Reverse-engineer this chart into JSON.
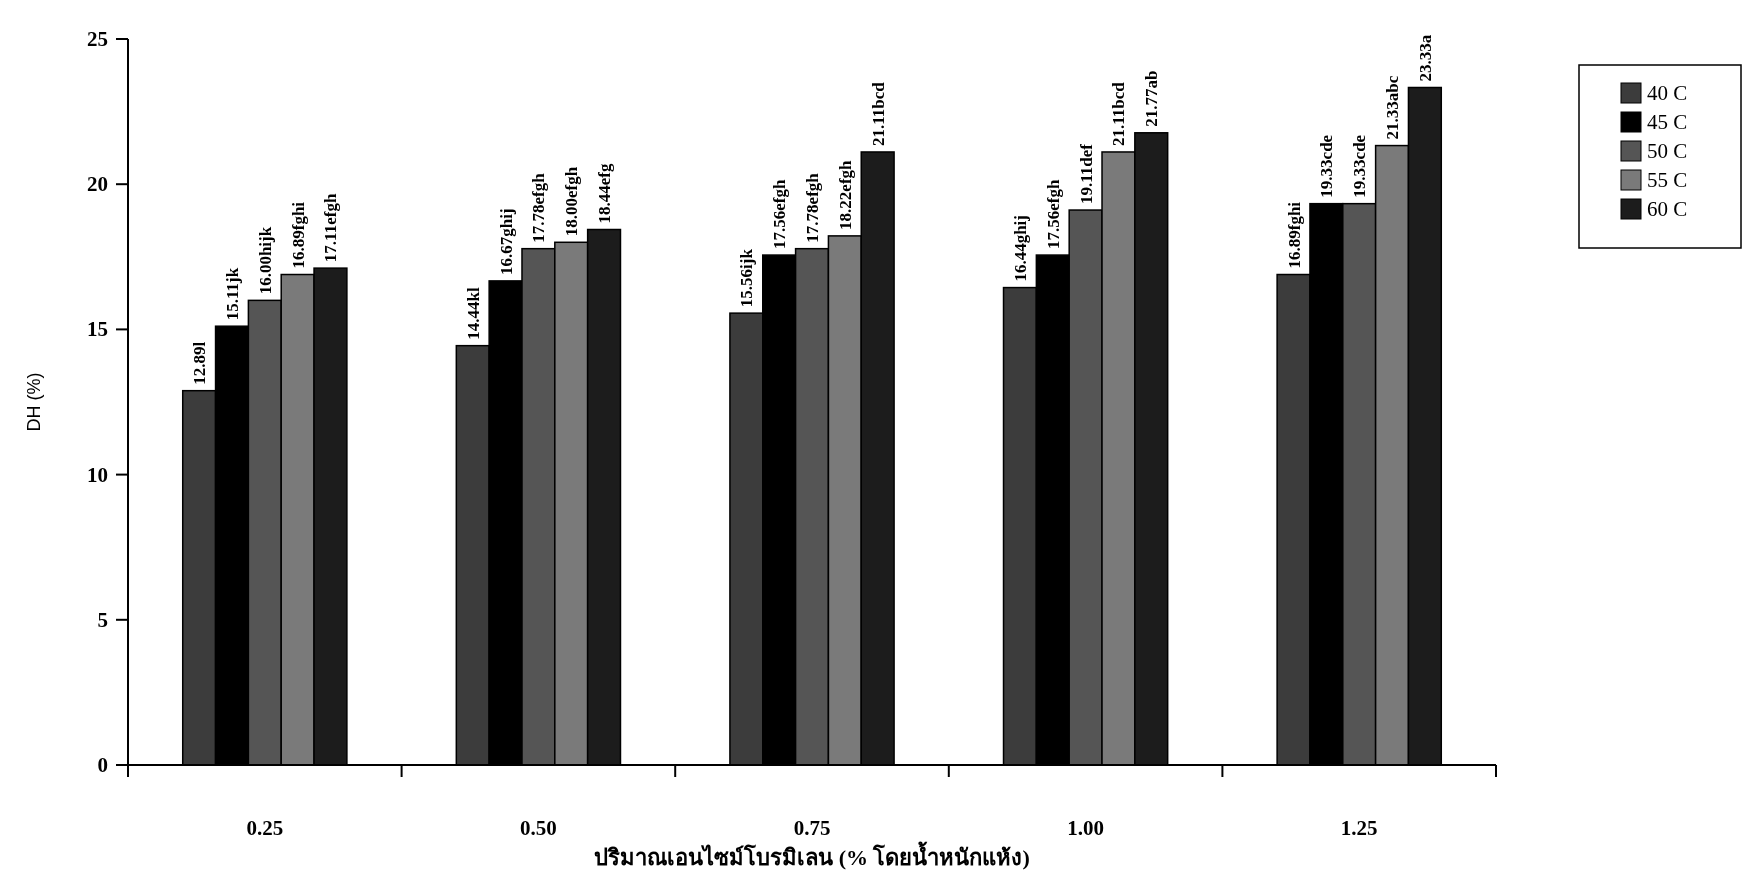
{
  "chart_data": {
    "type": "bar",
    "xlabel": "ปริมาณเอนไซม์โบรมิเลน (% โดยน้ำหนักแห้ง)",
    "ylabel": "DH (%)",
    "categories": [
      "0.25",
      "0.50",
      "0.75",
      "1.00",
      "1.25"
    ],
    "ylim": [
      0,
      25
    ],
    "yticks": [
      0,
      5,
      10,
      15,
      20,
      25
    ],
    "grid": false,
    "legend": "right",
    "series": [
      {
        "name": "40 C",
        "color": "#3c3c3c",
        "values": [
          12.89,
          14.44,
          15.56,
          16.44,
          16.89
        ],
        "value_labels": [
          "12.89l",
          "14.44kl",
          "15.56ijk",
          "16.44ghij",
          "16.89fghi"
        ]
      },
      {
        "name": "45 C",
        "color": "#000000",
        "values": [
          15.11,
          16.67,
          17.56,
          17.56,
          19.33
        ],
        "value_labels": [
          "15.11jk",
          "16.67ghij",
          "17.56efgh",
          "17.56efgh",
          "19.33cde"
        ]
      },
      {
        "name": "50 C",
        "color": "#555555",
        "values": [
          16.0,
          17.78,
          17.78,
          19.11,
          19.33
        ],
        "value_labels": [
          "16.00hijk",
          "17.78efgh",
          "17.78efgh",
          "19.11def",
          "19.33cde"
        ]
      },
      {
        "name": "55 C",
        "color": "#7a7a7a",
        "values": [
          16.89,
          18.0,
          18.22,
          21.11,
          21.33
        ],
        "value_labels": [
          "16.89fghi",
          "18.00efgh",
          "18.22efgh",
          "21.11bcd",
          "21.33abc"
        ]
      },
      {
        "name": "60 C",
        "color": "#1c1c1c",
        "values": [
          17.11,
          18.44,
          21.11,
          21.77,
          23.33
        ],
        "value_labels": [
          "17.11efgh",
          "18.44efg",
          "21.11bcd",
          "21.77ab",
          "23.33a"
        ]
      }
    ]
  }
}
